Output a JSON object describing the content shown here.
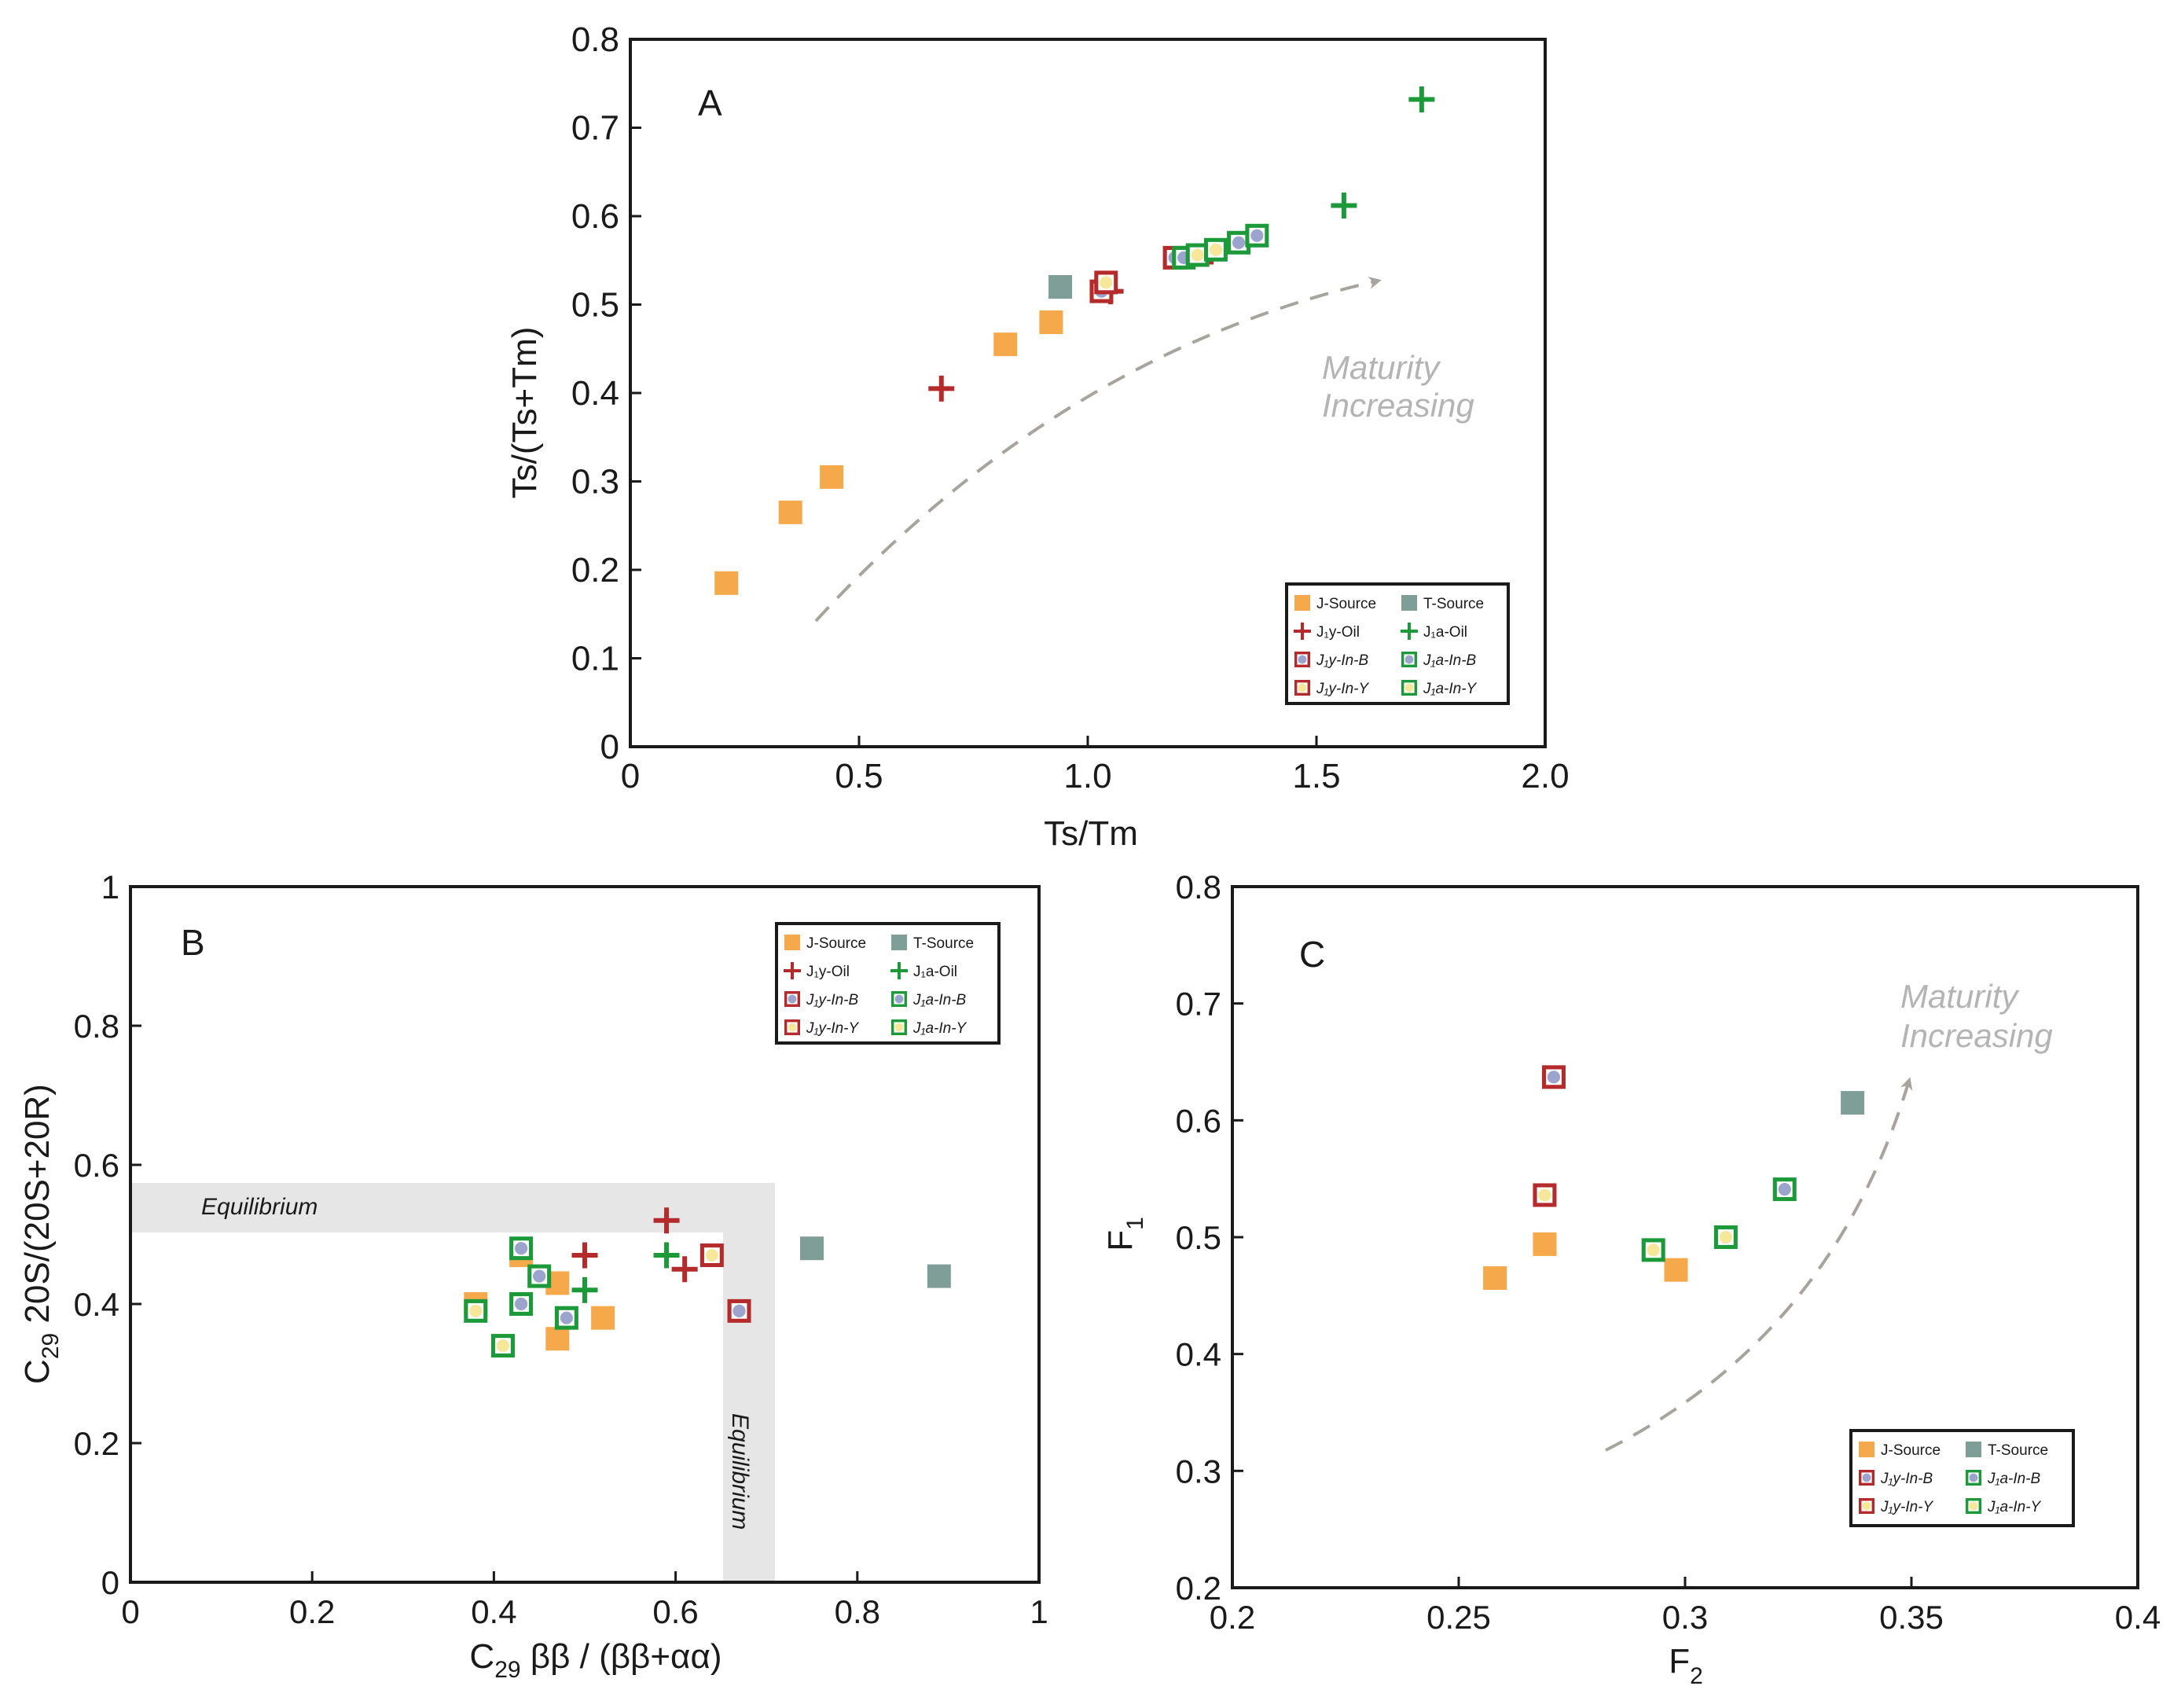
{
  "colors": {
    "j_source": "#f6a94a",
    "t_source": "#7f9e97",
    "red": "#b52a2a",
    "green": "#1c9a3a",
    "blue_fill": "#9aa4cc",
    "yellow_fill": "#f6e79a",
    "green_fill": "#4fae7a",
    "equilibrium_band": "#e6e6e6",
    "arrow": "#a8a39c",
    "maturity_text": "#b4b4b4"
  },
  "legend_labels": {
    "j_source": "J-Source",
    "t_source": "T-Source",
    "j1y_oil": "J₁y-Oil",
    "j1a_oil": "J₁a-Oil",
    "j1y_in_b": "J₁y-In-B",
    "j1a_in_b": "J₁a-In-B",
    "j1y_in_y": "J₁y-In-Y",
    "j1a_in_y": "J₁a-In-Y"
  },
  "annotations": {
    "maturity_line1": "Maturity",
    "maturity_line2": "Increasing",
    "equilibrium": "Equilibrium"
  },
  "chart_data": [
    {
      "panel": "A",
      "type": "scatter",
      "xlabel": "Ts/Tm",
      "ylabel": "Ts/(Ts+Tm)",
      "xlim": [
        0,
        2.0
      ],
      "ylim": [
        0,
        0.8
      ],
      "xticks": [
        "0",
        "0.5",
        "1.0",
        "1.5",
        "2.0"
      ],
      "yticks": [
        "0",
        "0.1",
        "0.2",
        "0.3",
        "0.4",
        "0.5",
        "0.6",
        "0.7",
        "0.8"
      ],
      "legend_position": "bottom-right",
      "series": [
        {
          "name": "J-Source",
          "points": [
            [
              0.21,
              0.185
            ],
            [
              0.35,
              0.265
            ],
            [
              0.44,
              0.305
            ],
            [
              0.82,
              0.455
            ],
            [
              0.92,
              0.48
            ]
          ]
        },
        {
          "name": "T-Source",
          "points": [
            [
              0.94,
              0.52
            ]
          ]
        },
        {
          "name": "J₁y-Oil",
          "points": [
            [
              0.68,
              0.405
            ],
            [
              1.05,
              0.515
            ],
            [
              1.27,
              0.56
            ]
          ]
        },
        {
          "name": "J₁a-Oil",
          "points": [
            [
              1.56,
              0.612
            ],
            [
              1.73,
              0.732
            ]
          ]
        },
        {
          "name": "J₁y-In-B",
          "points": [
            [
              1.03,
              0.515
            ],
            [
              1.19,
              0.553
            ]
          ]
        },
        {
          "name": "J₁a-In-B",
          "points": [
            [
              1.21,
              0.553
            ],
            [
              1.33,
              0.57
            ],
            [
              1.37,
              0.578
            ]
          ]
        },
        {
          "name": "J₁y-In-Y",
          "points": [
            [
              1.04,
              0.525
            ]
          ]
        },
        {
          "name": "J₁a-In-Y",
          "points": [
            [
              1.24,
              0.556
            ],
            [
              1.28,
              0.562
            ]
          ]
        }
      ]
    },
    {
      "panel": "B",
      "type": "scatter",
      "xlabel": "C29 ββ / (ββ+αα)",
      "ylabel": "C29 20S/(20S+20R)",
      "xlim": [
        0,
        1
      ],
      "ylim": [
        0,
        1
      ],
      "xticks": [
        "0",
        "0.2",
        "0.4",
        "0.6",
        "0.8",
        "1"
      ],
      "yticks": [
        "0",
        "0.2",
        "0.4",
        "0.6",
        "0.8",
        "1"
      ],
      "legend_position": "top-right",
      "equilibrium_ranges": {
        "y": [
          0.5,
          0.57
        ],
        "x": [
          0.65,
          0.71
        ]
      },
      "series": [
        {
          "name": "J-Source",
          "points": [
            [
              0.38,
              0.4
            ],
            [
              0.43,
              0.47
            ],
            [
              0.47,
              0.35
            ],
            [
              0.47,
              0.43
            ],
            [
              0.52,
              0.38
            ]
          ]
        },
        {
          "name": "T-Source",
          "points": [
            [
              0.75,
              0.48
            ],
            [
              0.89,
              0.44
            ]
          ]
        },
        {
          "name": "J₁y-Oil",
          "points": [
            [
              0.5,
              0.47
            ],
            [
              0.59,
              0.52
            ],
            [
              0.61,
              0.45
            ]
          ]
        },
        {
          "name": "J₁a-Oil",
          "points": [
            [
              0.5,
              0.42
            ],
            [
              0.59,
              0.47
            ]
          ]
        },
        {
          "name": "J₁y-In-B",
          "points": [
            [
              0.67,
              0.39
            ]
          ]
        },
        {
          "name": "J₁a-In-B",
          "points": [
            [
              0.43,
              0.48
            ],
            [
              0.45,
              0.44
            ],
            [
              0.43,
              0.4
            ],
            [
              0.48,
              0.38
            ]
          ]
        },
        {
          "name": "J₁y-In-Y",
          "points": [
            [
              0.64,
              0.47
            ]
          ]
        },
        {
          "name": "J₁a-In-Y",
          "points": [
            [
              0.38,
              0.39
            ],
            [
              0.41,
              0.34
            ]
          ]
        }
      ]
    },
    {
      "panel": "C",
      "type": "scatter",
      "xlabel": "F2",
      "ylabel": "F1",
      "xlim": [
        0.2,
        0.4
      ],
      "ylim": [
        0.2,
        0.8
      ],
      "xticks": [
        "0.2",
        "0.25",
        "0.3",
        "0.35",
        "0.4"
      ],
      "yticks": [
        "0.2",
        "0.3",
        "0.4",
        "0.5",
        "0.6",
        "0.7",
        "0.8"
      ],
      "legend_position": "bottom-right",
      "series": [
        {
          "name": "J-Source",
          "points": [
            [
              0.258,
              0.465
            ],
            [
              0.269,
              0.494
            ],
            [
              0.298,
              0.472
            ]
          ]
        },
        {
          "name": "T-Source",
          "points": [
            [
              0.337,
              0.615
            ]
          ]
        },
        {
          "name": "J₁y-In-B",
          "points": [
            [
              0.271,
              0.637
            ]
          ]
        },
        {
          "name": "J₁a-In-B",
          "points": [
            [
              0.322,
              0.541
            ]
          ]
        },
        {
          "name": "J₁y-In-Y",
          "points": [
            [
              0.269,
              0.536
            ]
          ]
        },
        {
          "name": "J₁a-In-Y",
          "points": [
            [
              0.293,
              0.489
            ],
            [
              0.309,
              0.5
            ]
          ]
        }
      ]
    }
  ]
}
